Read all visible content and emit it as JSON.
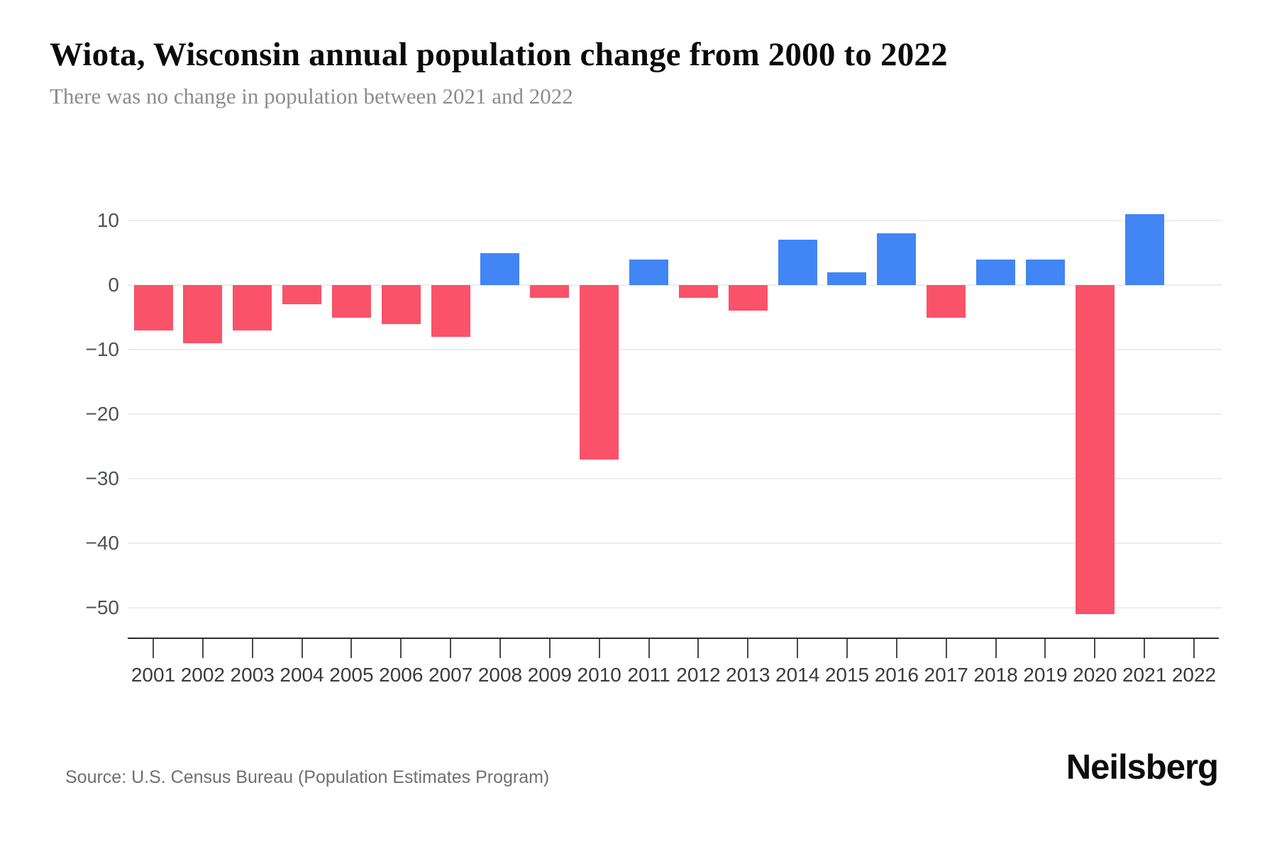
{
  "header": {
    "title": "Wiota, Wisconsin annual population change from 2000 to 2022",
    "subtitle": "There was no change in population between 2021 and 2022"
  },
  "chart_data": {
    "type": "bar",
    "title": "Wiota, Wisconsin annual population change from 2000 to 2022",
    "subtitle": "There was no change in population between 2021 and 2022",
    "categories": [
      "2001",
      "2002",
      "2003",
      "2004",
      "2005",
      "2006",
      "2007",
      "2008",
      "2009",
      "2010",
      "2011",
      "2012",
      "2013",
      "2014",
      "2015",
      "2016",
      "2017",
      "2018",
      "2019",
      "2020",
      "2021",
      "2022"
    ],
    "values": [
      -7,
      -9,
      -7,
      -3,
      -5,
      -6,
      -8,
      5,
      -2,
      -27,
      4,
      -2,
      -4,
      7,
      2,
      8,
      -5,
      4,
      4,
      -51,
      11,
      0
    ],
    "xlabel": "",
    "ylabel": "",
    "ylim": [
      -55,
      13
    ],
    "yticks": [
      {
        "label": "10",
        "value": 10
      },
      {
        "label": "0",
        "value": 0
      },
      {
        "label": "−10",
        "value": -10
      },
      {
        "label": "−20",
        "value": -20
      },
      {
        "label": "−30",
        "value": -30
      },
      {
        "label": "−40",
        "value": -40
      },
      {
        "label": "−50",
        "value": -50
      }
    ],
    "grid": "horizontal",
    "legend": "none",
    "positive_color": "#4285F4",
    "negative_color": "#FA5268"
  },
  "footer": {
    "source": "Source: U.S. Census Bureau (Population Estimates Program)",
    "brand": "Neilsberg"
  }
}
